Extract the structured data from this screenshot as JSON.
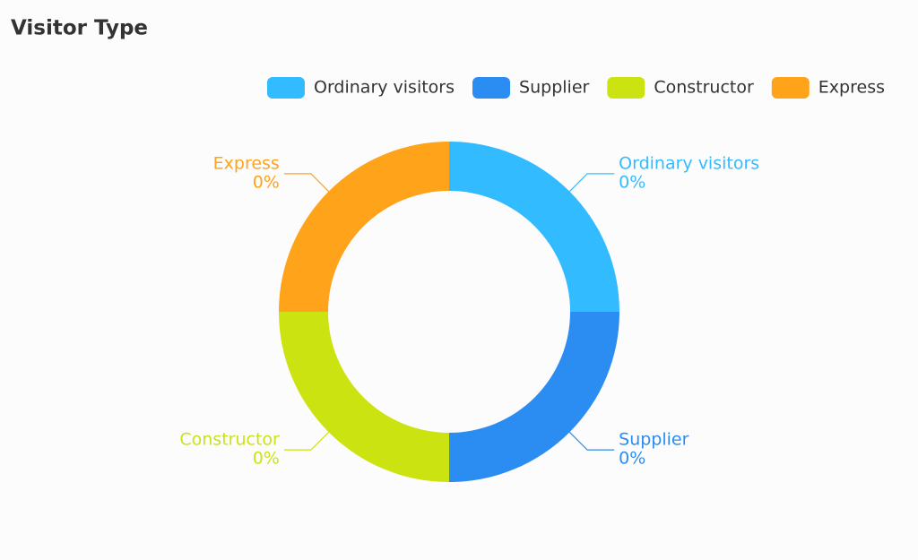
{
  "chart_data": {
    "type": "donut",
    "title": "Visitor Type",
    "categories": [
      "Ordinary visitors",
      "Supplier",
      "Constructor",
      "Express"
    ],
    "values": [
      0,
      0,
      0,
      0
    ],
    "value_labels": [
      "0%",
      "0%",
      "0%",
      "0%"
    ],
    "colors": [
      "#33bbff",
      "#2b8cf2",
      "#cce312",
      "#ffa31a"
    ],
    "legend": "top-right"
  }
}
